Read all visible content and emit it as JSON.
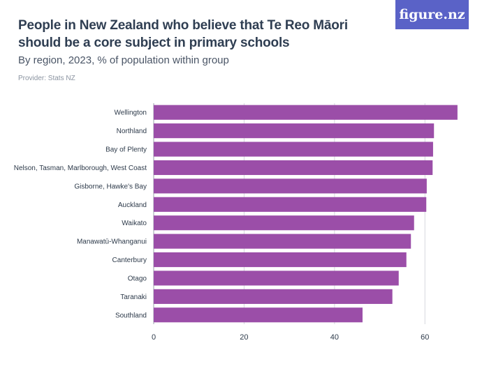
{
  "header": {
    "title": "People in New Zealand who believe that Te Reo Māori should be a core subject in primary schools",
    "subtitle": "By region, 2023, % of population within group",
    "provider": "Provider: Stats NZ",
    "logo_text": "figure.nz"
  },
  "colors": {
    "bar": "#9b4ea8",
    "logo_bg": "#5a62c7",
    "grid": "#d5d8dd"
  },
  "chart_data": {
    "type": "bar",
    "orientation": "horizontal",
    "title": "People in New Zealand who believe that Te Reo Māori should be a core subject in primary schools",
    "subtitle": "By region, 2023, % of population within group",
    "categories": [
      "Wellington",
      "Northland",
      "Bay of Plenty",
      "Nelson, Tasman, Marlborough, West Coast",
      "Gisborne, Hawke's Bay",
      "Auckland",
      "Waikato",
      "Manawatū-Whanganui",
      "Canterbury",
      "Otago",
      "Taranaki",
      "Southland"
    ],
    "values": [
      67.2,
      62.0,
      61.8,
      61.7,
      60.4,
      60.3,
      57.6,
      56.9,
      55.9,
      54.2,
      52.8,
      46.2
    ],
    "xlim": [
      0,
      70
    ],
    "xticks": [
      0,
      20,
      40,
      60
    ],
    "grid": true
  }
}
